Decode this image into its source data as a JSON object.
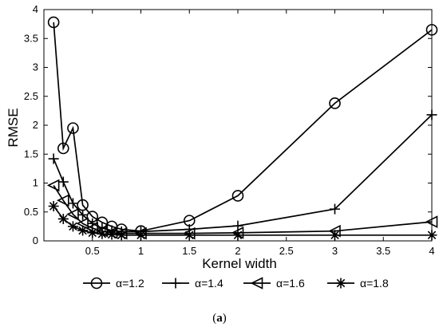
{
  "chart_data": {
    "type": "line",
    "xlabel": "Kernel width",
    "ylabel": "RMSE",
    "xlim": [
      0,
      4
    ],
    "ylim": [
      0,
      4
    ],
    "xticks": [
      "0.5",
      "1",
      "1.5",
      "2",
      "2.5",
      "3",
      "3.5",
      "4"
    ],
    "yticks": [
      "0",
      "0.5",
      "1",
      "1.5",
      "2",
      "2.5",
      "3",
      "3.5",
      "4"
    ],
    "grid": false,
    "legend_position": "bottom",
    "series": [
      {
        "name": "α=1.2",
        "marker": "circle",
        "color": "#000000",
        "x": [
          0.1,
          0.2,
          0.3,
          0.4,
          0.5,
          0.6,
          0.7,
          0.8,
          1.0,
          1.5,
          2.0,
          3.0,
          4.0
        ],
        "y": [
          3.78,
          1.6,
          1.95,
          0.62,
          0.42,
          0.32,
          0.25,
          0.2,
          0.17,
          0.35,
          0.78,
          2.38,
          3.65
        ]
      },
      {
        "name": "α=1.4",
        "marker": "plus",
        "color": "#000000",
        "x": [
          0.1,
          0.2,
          0.3,
          0.4,
          0.5,
          0.6,
          0.7,
          0.8,
          1.0,
          1.5,
          2.0,
          3.0,
          4.0
        ],
        "y": [
          1.42,
          1.02,
          0.65,
          0.45,
          0.3,
          0.22,
          0.18,
          0.16,
          0.16,
          0.2,
          0.26,
          0.55,
          2.18
        ]
      },
      {
        "name": "α=1.6",
        "marker": "triangle-left",
        "color": "#000000",
        "x": [
          0.1,
          0.2,
          0.3,
          0.4,
          0.5,
          0.6,
          0.7,
          0.8,
          1.0,
          1.5,
          2.0,
          3.0,
          4.0
        ],
        "y": [
          0.96,
          0.7,
          0.46,
          0.3,
          0.22,
          0.17,
          0.14,
          0.13,
          0.13,
          0.13,
          0.14,
          0.17,
          0.33
        ]
      },
      {
        "name": "α=1.8",
        "marker": "asterisk",
        "color": "#000000",
        "x": [
          0.1,
          0.2,
          0.3,
          0.4,
          0.5,
          0.6,
          0.7,
          0.8,
          1.0,
          1.5,
          2.0,
          3.0,
          4.0
        ],
        "y": [
          0.6,
          0.38,
          0.25,
          0.18,
          0.14,
          0.12,
          0.11,
          0.1,
          0.1,
          0.1,
          0.1,
          0.1,
          0.1
        ]
      }
    ]
  },
  "caption": {
    "open": "(",
    "label": "a",
    "close": ")"
  }
}
